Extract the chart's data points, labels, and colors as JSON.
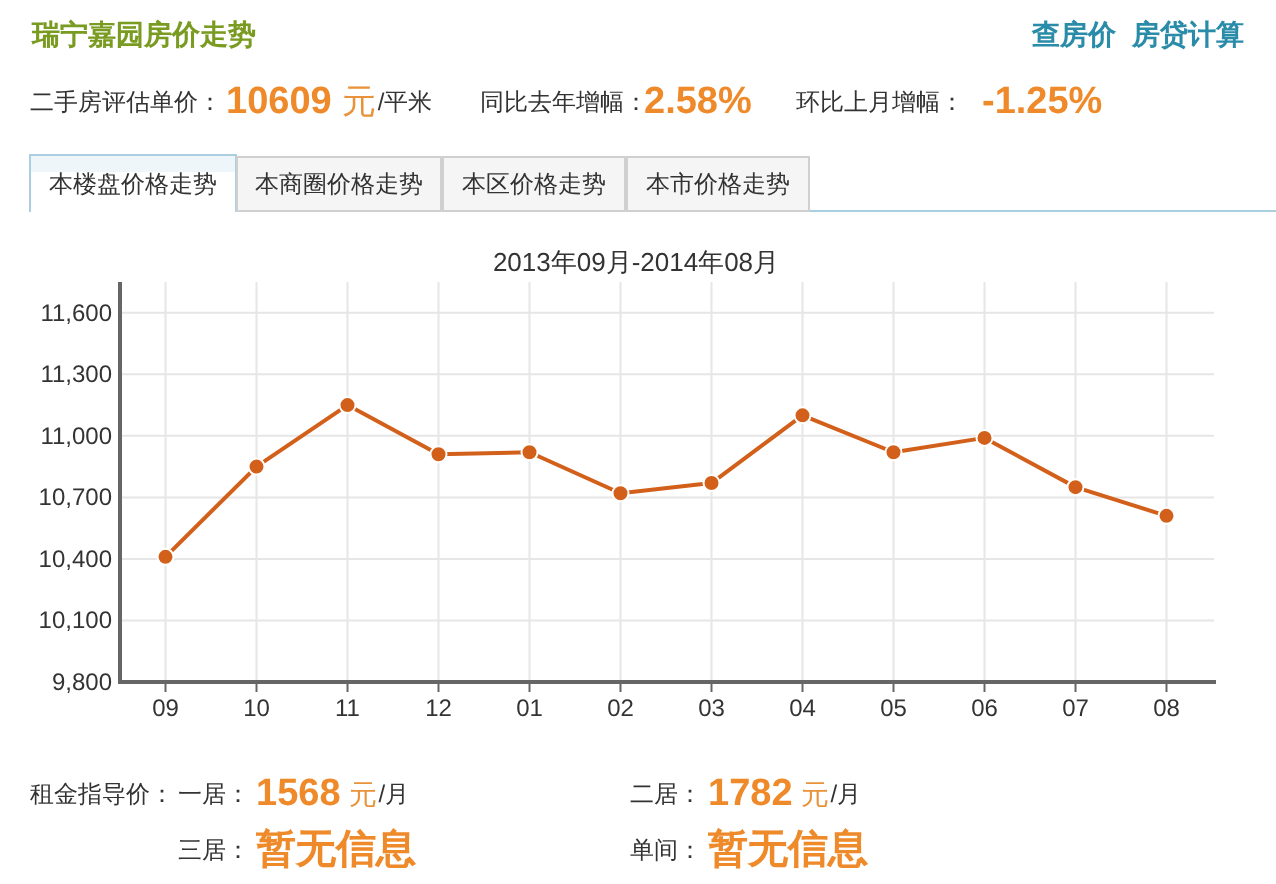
{
  "chart_data": {
    "type": "line",
    "title": "瑞宁嘉园房价走势",
    "subtitle": "2013年09月-2014年08月",
    "annotations": [
      "查房价",
      "房贷计算",
      "二手房评估单价：",
      "10609",
      "元",
      "/平米",
      "同比去年增幅：",
      "2.58%",
      "环比上月增幅：",
      "-1.25%",
      "本楼盘价格走势",
      "本商圈价格走势",
      "本区价格走势",
      "本市价格走势",
      "租金指导价：",
      "一居：",
      "1568",
      "元",
      "/月",
      "二居：",
      "1782",
      "元",
      "/月",
      "三居：",
      "暂无信息",
      "单间：",
      "暂无信息"
    ],
    "categories": [
      "09",
      "10",
      "11",
      "12",
      "01",
      "02",
      "03",
      "04",
      "05",
      "06",
      "07",
      "08"
    ],
    "values": [
      10410,
      10850,
      11150,
      10910,
      10920,
      10720,
      10770,
      11100,
      10920,
      10990,
      10750,
      10610
    ],
    "color": "#d2601a",
    "marker": "circle",
    "grid": true,
    "ylim": [
      9800,
      11750
    ],
    "yticks": [
      {
        "value": 9800,
        "label": "9,800"
      },
      {
        "value": 10100,
        "label": "10,100"
      },
      {
        "value": 10400,
        "label": "10,400"
      },
      {
        "value": 10700,
        "label": "10,700"
      },
      {
        "value": 11000,
        "label": "11,000"
      },
      {
        "value": 11300,
        "label": "11,300"
      },
      {
        "value": 11600,
        "label": "11,600"
      }
    ]
  }
}
